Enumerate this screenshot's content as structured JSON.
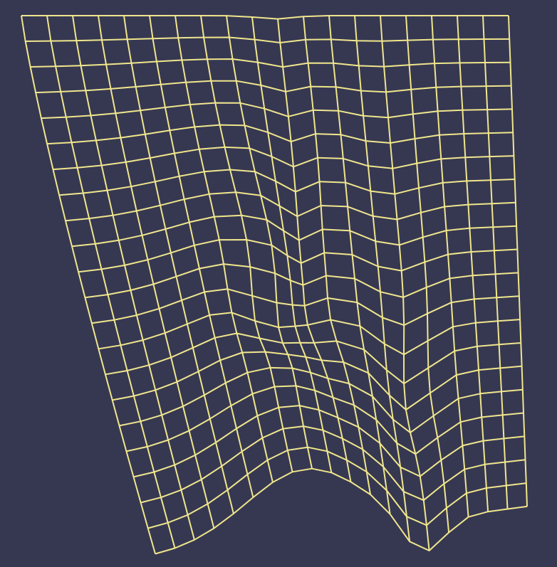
{
  "background_color": "#363852",
  "line_color": "#f0e68c",
  "grid": {
    "columns": 19,
    "rows": 21
  }
}
